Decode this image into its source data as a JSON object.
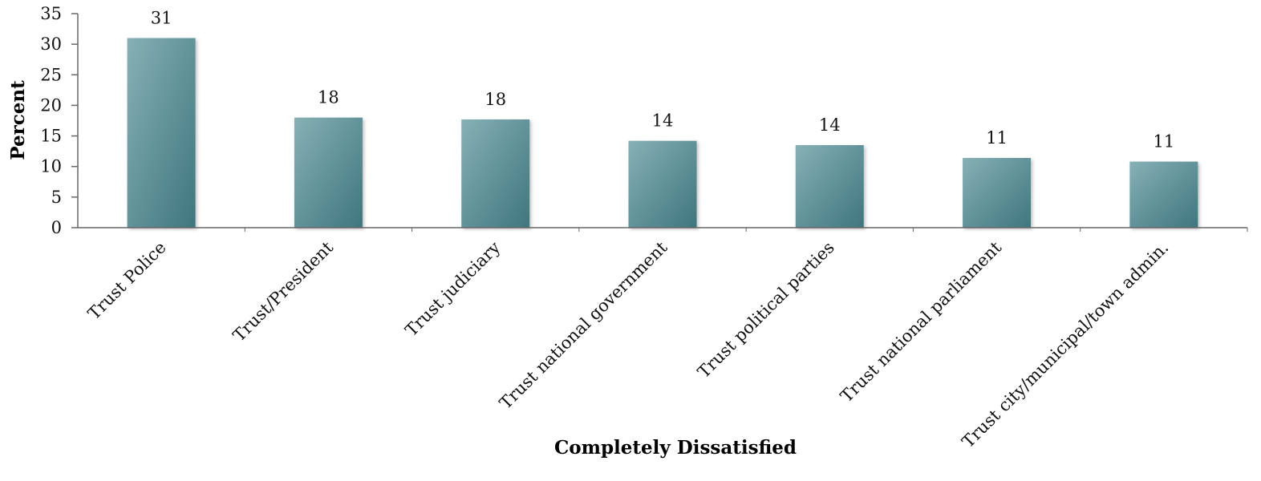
{
  "chart_data": {
    "type": "bar",
    "xlabel": "Completely Dissatisfied",
    "ylabel": "Percent",
    "ylim": [
      0,
      35
    ],
    "yticks": [
      0,
      5,
      10,
      15,
      20,
      25,
      30,
      35
    ],
    "grid": false,
    "legend": "none",
    "categories": [
      "Trust Police",
      "Trust/President",
      "Trust judiciary",
      "Trust national government",
      "Trust political parties",
      "Trust national parliament",
      "Trust city/municipal/town admin."
    ],
    "values": [
      31,
      18,
      17.7,
      14.2,
      13.5,
      11.4,
      10.8
    ],
    "data_labels": [
      "31",
      "18",
      "18",
      "14",
      "14",
      "11",
      "11"
    ],
    "colors": {
      "bar_top": "#86b0b6",
      "bar_bottom": "#3f767d",
      "axis": "#666666"
    }
  }
}
